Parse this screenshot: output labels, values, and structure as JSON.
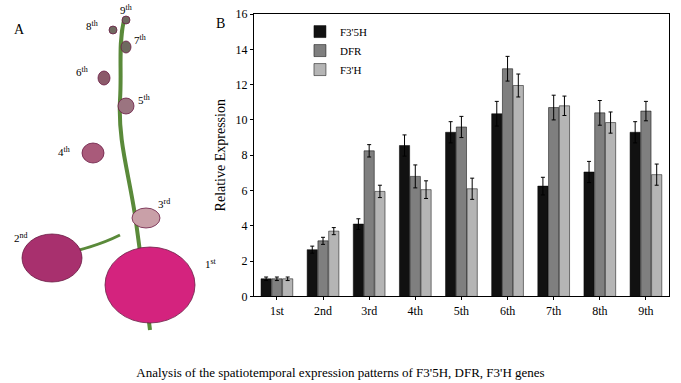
{
  "chart_data": {
    "type": "bar",
    "title": "Analysis of the spatiotemporal expression patterns of F3'5H, DFR, F3'H genes",
    "annotations": [
      "B"
    ],
    "panel_a": {
      "label": "A",
      "labels": [
        "1st",
        "2nd",
        "3rd",
        "4th",
        "5th",
        "6th",
        "7th",
        "8th",
        "9th"
      ]
    },
    "y_label": "Relative Expression",
    "categories": [
      "1st",
      "2nd",
      "3rd",
      "4th",
      "5th",
      "6th",
      "7th",
      "8th",
      "9th"
    ],
    "series": [
      {
        "name": "F3'5H",
        "color": "#111111",
        "values": [
          1,
          2.65,
          4.1,
          8.55,
          9.3,
          10.35,
          6.25,
          7.05,
          9.3
        ],
        "errors": [
          0.1,
          0.2,
          0.3,
          0.6,
          0.6,
          0.7,
          0.5,
          0.6,
          0.6
        ]
      },
      {
        "name": "DFR",
        "color": "#7f7f7f",
        "values": [
          1,
          3.15,
          8.25,
          6.8,
          9.6,
          12.9,
          10.7,
          10.4,
          10.5
        ],
        "errors": [
          0.1,
          0.2,
          0.35,
          0.65,
          0.6,
          0.7,
          0.7,
          0.7,
          0.55
        ]
      },
      {
        "name": "F3'H",
        "color": "#b5b5b5",
        "values": [
          1,
          3.7,
          5.95,
          6.05,
          6.1,
          11.95,
          10.8,
          9.85,
          6.9
        ],
        "errors": [
          0.1,
          0.2,
          0.35,
          0.5,
          0.6,
          0.65,
          0.55,
          0.6,
          0.6
        ]
      }
    ],
    "ylim": [
      0,
      16
    ],
    "yticks": [
      0,
      2,
      4,
      6,
      8,
      10,
      12,
      14,
      16
    ],
    "legend": "top-left",
    "grid": false
  }
}
